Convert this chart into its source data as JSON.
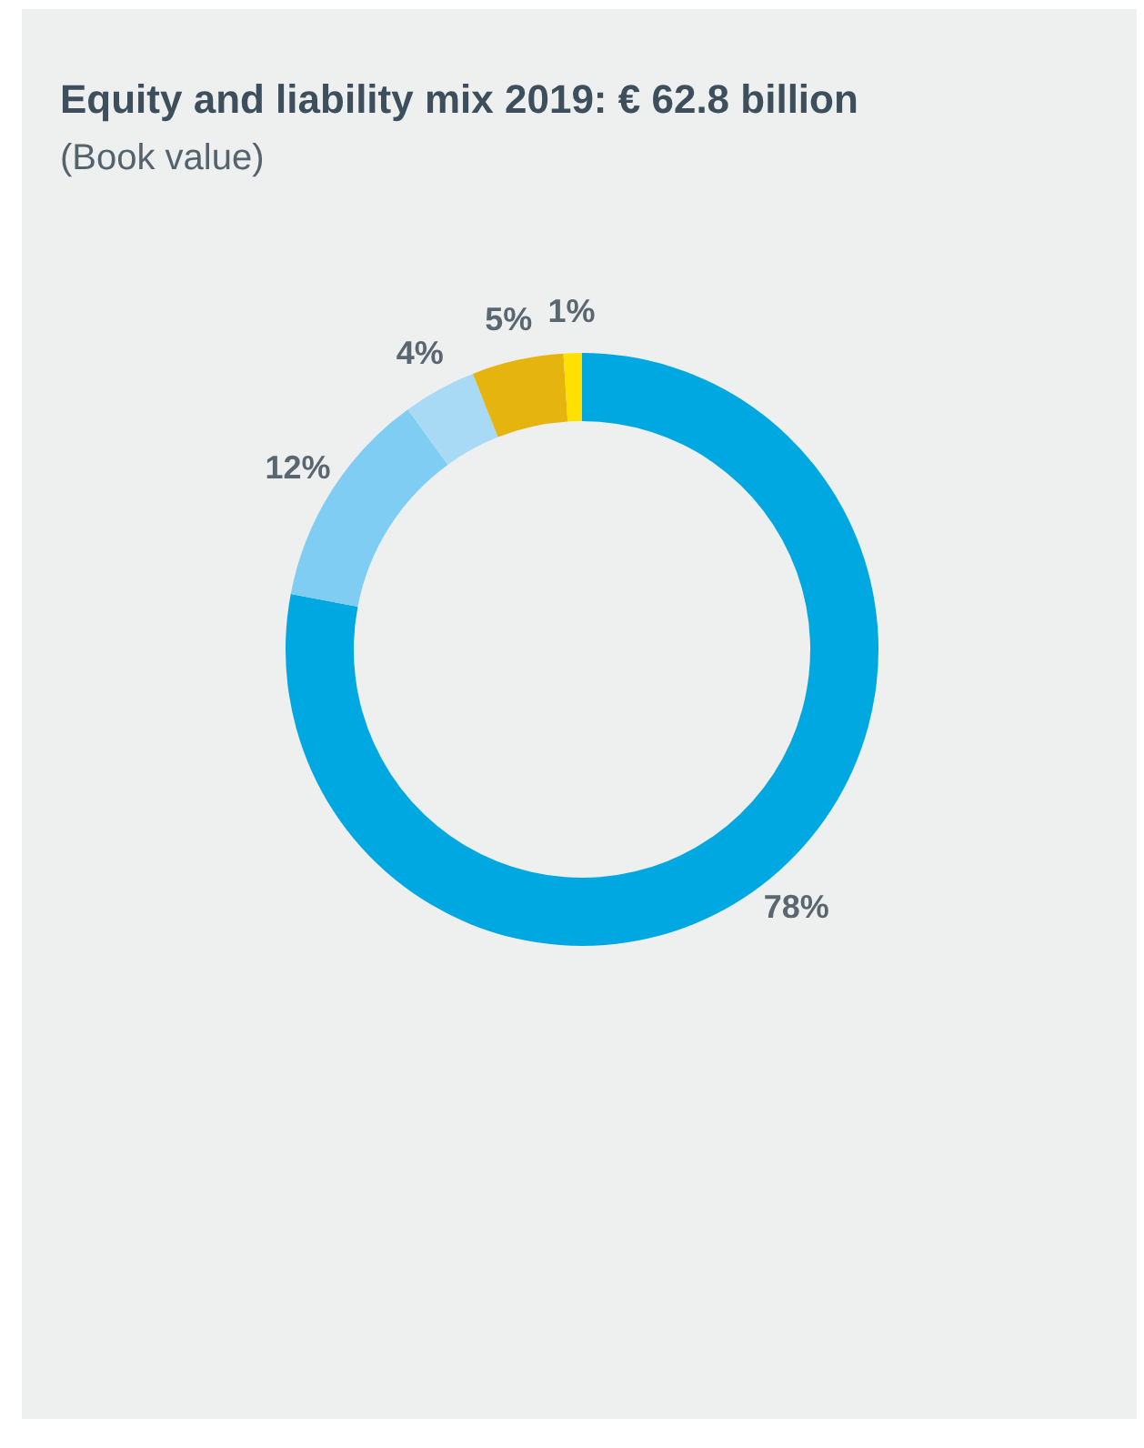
{
  "chart_data": {
    "type": "donut",
    "title": "Equity and liability mix 2019: € 62.8 billion",
    "subtitle": "(Book value)",
    "categories": [
      null,
      null,
      null,
      null,
      null
    ],
    "values": [
      78,
      12,
      4,
      5,
      1
    ],
    "colors": [
      "#00a8e1",
      "#7fcdf2",
      "#a9daf5",
      "#e6b40f",
      "#ffe000"
    ],
    "value_labels": [
      "78%",
      "12%",
      "4%",
      "5%",
      "1%"
    ],
    "legend": false
  }
}
